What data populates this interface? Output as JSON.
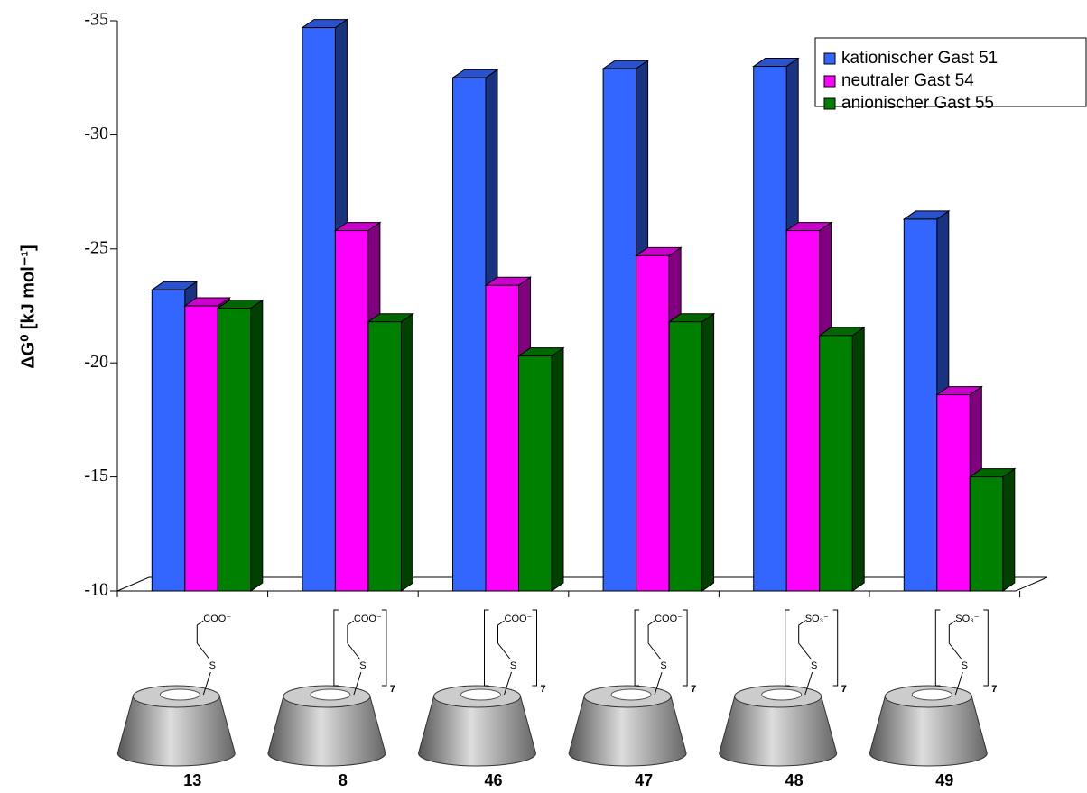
{
  "chart_data": {
    "type": "bar3d",
    "y_label": "ΔG⁰ [kJ mol⁻¹]",
    "categories": [
      "13",
      "8",
      "46",
      "47",
      "48",
      "49"
    ],
    "series": [
      {
        "name": "kationischer Gast 51",
        "color": "#3366ff",
        "values": [
          -23.2,
          -34.7,
          -32.5,
          -32.9,
          -33.0,
          -26.3
        ]
      },
      {
        "name": "neutraler Gast 54",
        "color": "#ff00ff",
        "values": [
          -22.5,
          -25.8,
          -23.4,
          -24.7,
          -25.8,
          -18.6
        ]
      },
      {
        "name": "anionischer Gast 55",
        "color": "#008000",
        "values": [
          -22.4,
          -21.8,
          -20.3,
          -21.8,
          -21.2,
          -15.0
        ]
      }
    ],
    "ylim": [
      -10,
      -35
    ],
    "yticks": [
      -10,
      -15,
      -20,
      -25,
      -30,
      -35
    ],
    "legend": "upper right",
    "structures": [
      {
        "group": "COO⁻",
        "atom": "S"
      },
      {
        "group": "COO⁻",
        "atom": "S",
        "n": "7"
      },
      {
        "group": "COO⁻",
        "atom": "S",
        "n": "7"
      },
      {
        "group": "COO⁻",
        "atom": "S",
        "n": "7"
      },
      {
        "group": "SO₃⁻",
        "atom": "S",
        "n": "7"
      },
      {
        "group": "SO₃⁻",
        "atom": "S",
        "n": "7"
      }
    ]
  }
}
